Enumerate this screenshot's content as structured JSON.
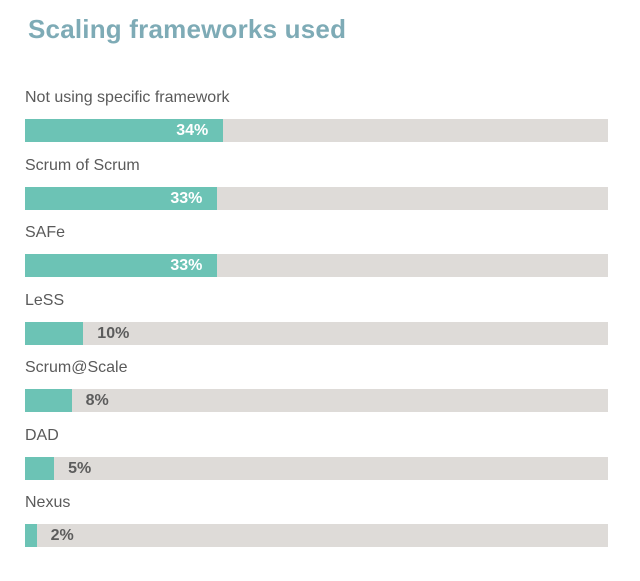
{
  "chart_data": {
    "type": "bar",
    "orientation": "horizontal",
    "title": "Scaling frameworks used",
    "categories": [
      "Not using specific framework",
      "Scrum of Scrum",
      "SAFe",
      "LeSS",
      "Scrum@Scale",
      "DAD",
      "Nexus"
    ],
    "values": [
      34,
      33,
      33,
      10,
      8,
      5,
      2
    ],
    "value_labels": [
      "34%",
      "33%",
      "33%",
      "10%",
      "8%",
      "5%",
      "2%"
    ],
    "xlim": [
      0,
      100
    ],
    "unit": "%",
    "grid": false,
    "colors": {
      "bar": "#6cc3b5",
      "track": "#dedbd8",
      "title": "#7eabb6"
    }
  }
}
